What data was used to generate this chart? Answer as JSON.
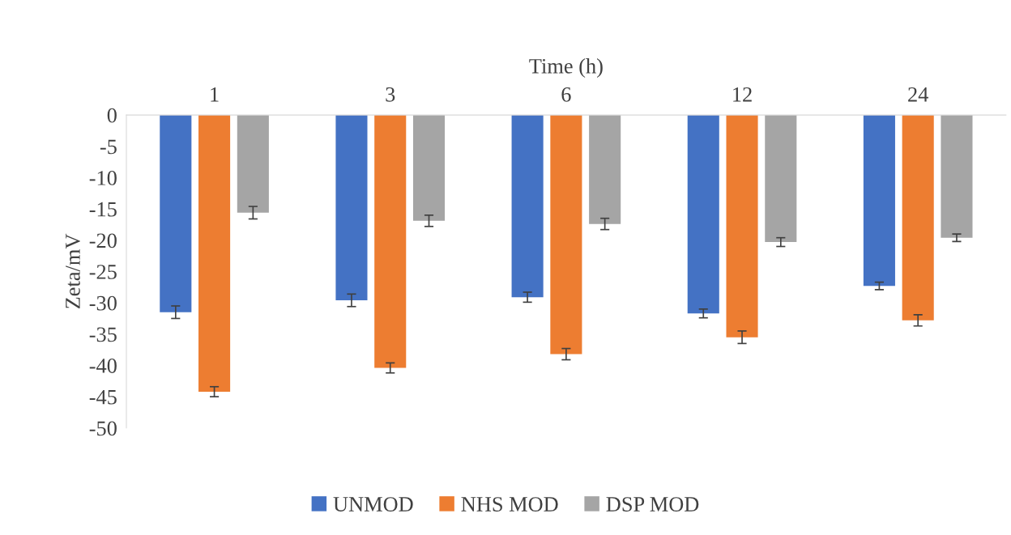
{
  "chart_data": {
    "type": "bar",
    "xlabel": "Time (h)",
    "ylabel": "Zeta/mV",
    "categories": [
      "1",
      "3",
      "6",
      "12",
      "24"
    ],
    "series": [
      {
        "name": "UNMOD",
        "color": "#4472c4",
        "values": [
          -31.5,
          -29.6,
          -29.1,
          -31.7,
          -27.3
        ],
        "errors": [
          1.0,
          1.0,
          0.8,
          0.7,
          0.6
        ]
      },
      {
        "name": "NHS MOD",
        "color": "#ed7d31",
        "values": [
          -44.2,
          -40.4,
          -38.2,
          -35.5,
          -32.8
        ],
        "errors": [
          0.8,
          0.8,
          0.9,
          1.0,
          0.9
        ]
      },
      {
        "name": "DSP MOD",
        "color": "#a5a5a5",
        "values": [
          -15.6,
          -16.9,
          -17.4,
          -20.3,
          -19.6
        ],
        "errors": [
          1.0,
          0.9,
          0.9,
          0.7,
          0.6
        ]
      }
    ],
    "ylim": [
      -50,
      0
    ],
    "yticks": [
      -50,
      -45,
      -40,
      -35,
      -30,
      -25,
      -20,
      -15,
      -10,
      -5,
      0
    ],
    "grid": false,
    "legend": "bottom"
  }
}
